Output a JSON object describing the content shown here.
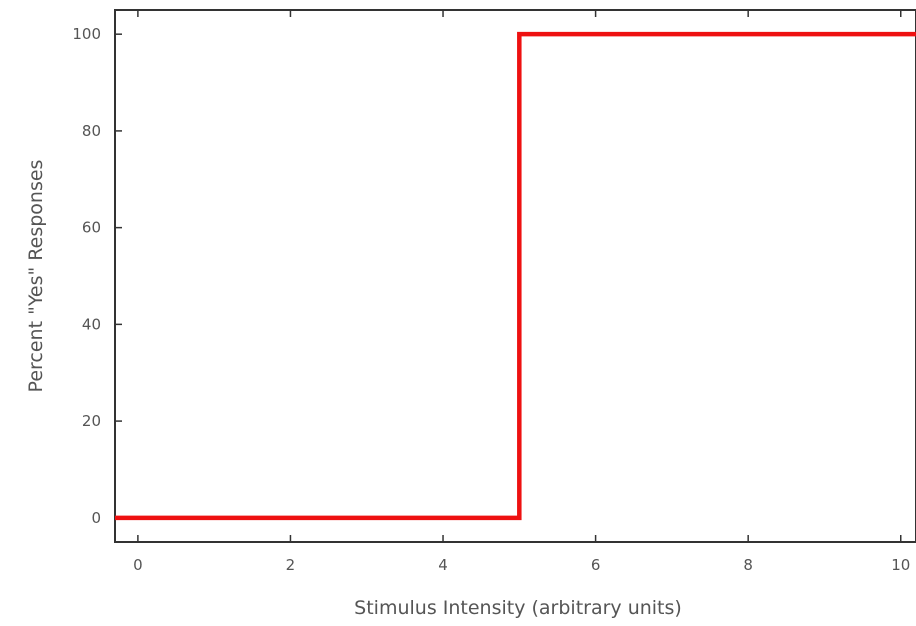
{
  "chart_data": {
    "type": "line",
    "title": "",
    "xlabel": "Stimulus Intensity (arbitrary units)",
    "ylabel": "Percent \"Yes\" Responses",
    "xlim": [
      -0.3,
      10.2
    ],
    "ylim": [
      -5,
      105
    ],
    "xticks": [
      0,
      2,
      4,
      6,
      8,
      10
    ],
    "yticks": [
      0,
      20,
      40,
      60,
      80,
      100
    ],
    "grid": false,
    "series": [
      {
        "color": "#ee1111",
        "step": true,
        "x": [
          -0.3,
          5,
          5,
          10.2
        ],
        "y": [
          0,
          0,
          100,
          100
        ]
      }
    ]
  }
}
